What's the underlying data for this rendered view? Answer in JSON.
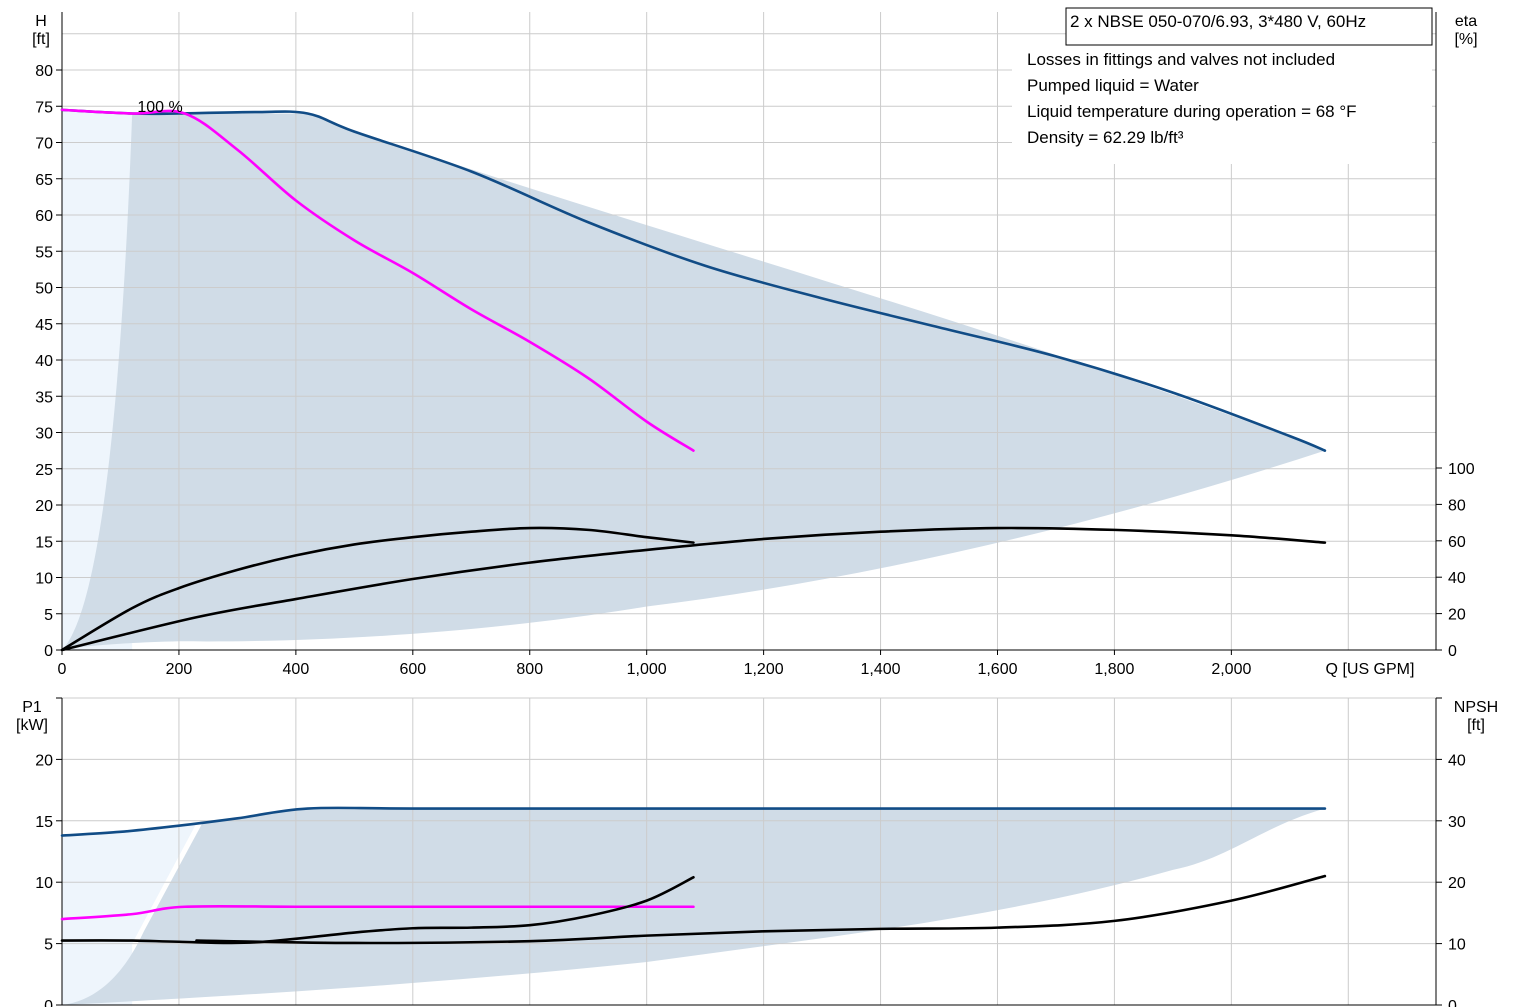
{
  "title_box": "2 x NBSE 050-070/6.93, 3*480 V, 60Hz",
  "notes": [
    "Losses in fittings and valves not included",
    "Pumped liquid = Water",
    "Liquid temperature during operation = 68 °F",
    "Density = 62.29 lb/ft³"
  ],
  "colors": {
    "envelope_light": "#eef5fc",
    "envelope_dark": "#d0dce7",
    "blue_curve": "#114c86",
    "magenta_curve": "#ff00ff",
    "black_curve": "#000000",
    "grid": "#cccccc"
  },
  "chart_data": [
    {
      "type": "line",
      "name": "upper-chart",
      "x_unit_label": "Q [US GPM]",
      "x_ticks": [
        "0",
        "200",
        "400",
        "600",
        "800",
        "1,000",
        "1,200",
        "1,400",
        "1,600",
        "1,800",
        "2,000"
      ],
      "xlim": [
        0,
        2350
      ],
      "y_left": {
        "label_top": "H",
        "label_unit": "[ft]",
        "ylim": [
          0,
          88
        ],
        "ticks": [
          "0",
          "5",
          "10",
          "15",
          "20",
          "25",
          "30",
          "35",
          "40",
          "45",
          "50",
          "55",
          "60",
          "65",
          "70",
          "75",
          "80"
        ]
      },
      "y_right": {
        "label_top": "eta",
        "label_unit": "[%]",
        "ylim": [
          0,
          100
        ],
        "ticks": [
          "0",
          "20",
          "40",
          "60",
          "80",
          "100"
        ]
      },
      "annotation": "100 %",
      "grid": true,
      "series": [
        {
          "axis": "left",
          "color_key": "blue_curve",
          "x": [
            0,
            120,
            200,
            330,
            420,
            500,
            700,
            900,
            1100,
            1300,
            1500,
            1700,
            1900,
            2100,
            2160
          ],
          "y": [
            74.5,
            74,
            74,
            74.2,
            74,
            71.5,
            66,
            59,
            53,
            48.5,
            44.5,
            40.5,
            35.5,
            29.5,
            27.5
          ]
        },
        {
          "axis": "left",
          "color_key": "magenta_curve",
          "x": [
            0,
            120,
            210,
            300,
            400,
            500,
            600,
            700,
            800,
            900,
            1000,
            1080
          ],
          "y": [
            74.5,
            74,
            74,
            69,
            62,
            56.5,
            52,
            47,
            42.5,
            37.5,
            31.5,
            27.5
          ]
        },
        {
          "axis": "right",
          "color_key": "black_curve",
          "x": [
            0,
            120,
            200,
            300,
            400,
            500,
            600,
            700,
            800,
            900,
            1000,
            1080
          ],
          "y": [
            0,
            23,
            34,
            44,
            52,
            58,
            62,
            65,
            67,
            66,
            62,
            59
          ]
        },
        {
          "axis": "right",
          "color_key": "black_curve",
          "x": [
            0,
            230,
            400,
            600,
            800,
            1000,
            1200,
            1400,
            1600,
            1800,
            2000,
            2160
          ],
          "y": [
            0,
            18,
            28,
            39,
            48,
            55,
            61,
            65,
            67,
            66,
            63,
            59
          ]
        }
      ]
    },
    {
      "type": "line",
      "name": "lower-chart",
      "xlim": [
        0,
        2350
      ],
      "y_left": {
        "label_top": "P1",
        "label_unit": "[kW]",
        "ylim": [
          0,
          25
        ],
        "ticks": [
          "0",
          "5",
          "10",
          "15",
          "20"
        ]
      },
      "y_right": {
        "label_top": "NPSH",
        "label_unit": "[ft]",
        "ylim": [
          0,
          50
        ],
        "ticks": [
          "0",
          "10",
          "20",
          "30",
          "40"
        ]
      },
      "grid": true,
      "series": [
        {
          "axis": "left",
          "color_key": "blue_curve",
          "x": [
            0,
            100,
            200,
            300,
            420,
            600,
            1000,
            1500,
            2000,
            2160
          ],
          "y": [
            13.8,
            14.1,
            14.6,
            15.2,
            16,
            16,
            16,
            16,
            16,
            16
          ]
        },
        {
          "axis": "left",
          "color_key": "magenta_curve",
          "x": [
            0,
            120,
            210,
            400,
            600,
            800,
            1000,
            1080
          ],
          "y": [
            7,
            7.4,
            8,
            8,
            8,
            8,
            8,
            8
          ]
        },
        {
          "axis": "right",
          "color_key": "black_curve",
          "x": [
            0,
            120,
            200,
            330,
            500,
            600,
            700,
            800,
            900,
            1000,
            1080
          ],
          "y": [
            10.5,
            10.5,
            10.3,
            10.2,
            11.8,
            12.5,
            12.6,
            13,
            14.5,
            17,
            20.8
          ]
        },
        {
          "axis": "right",
          "color_key": "black_curve",
          "x": [
            230,
            500,
            800,
            1000,
            1200,
            1400,
            1600,
            1800,
            2000,
            2160
          ],
          "y": [
            10.5,
            10.1,
            10.4,
            11.3,
            12,
            12.4,
            12.6,
            13.7,
            17,
            21
          ]
        }
      ]
    }
  ]
}
